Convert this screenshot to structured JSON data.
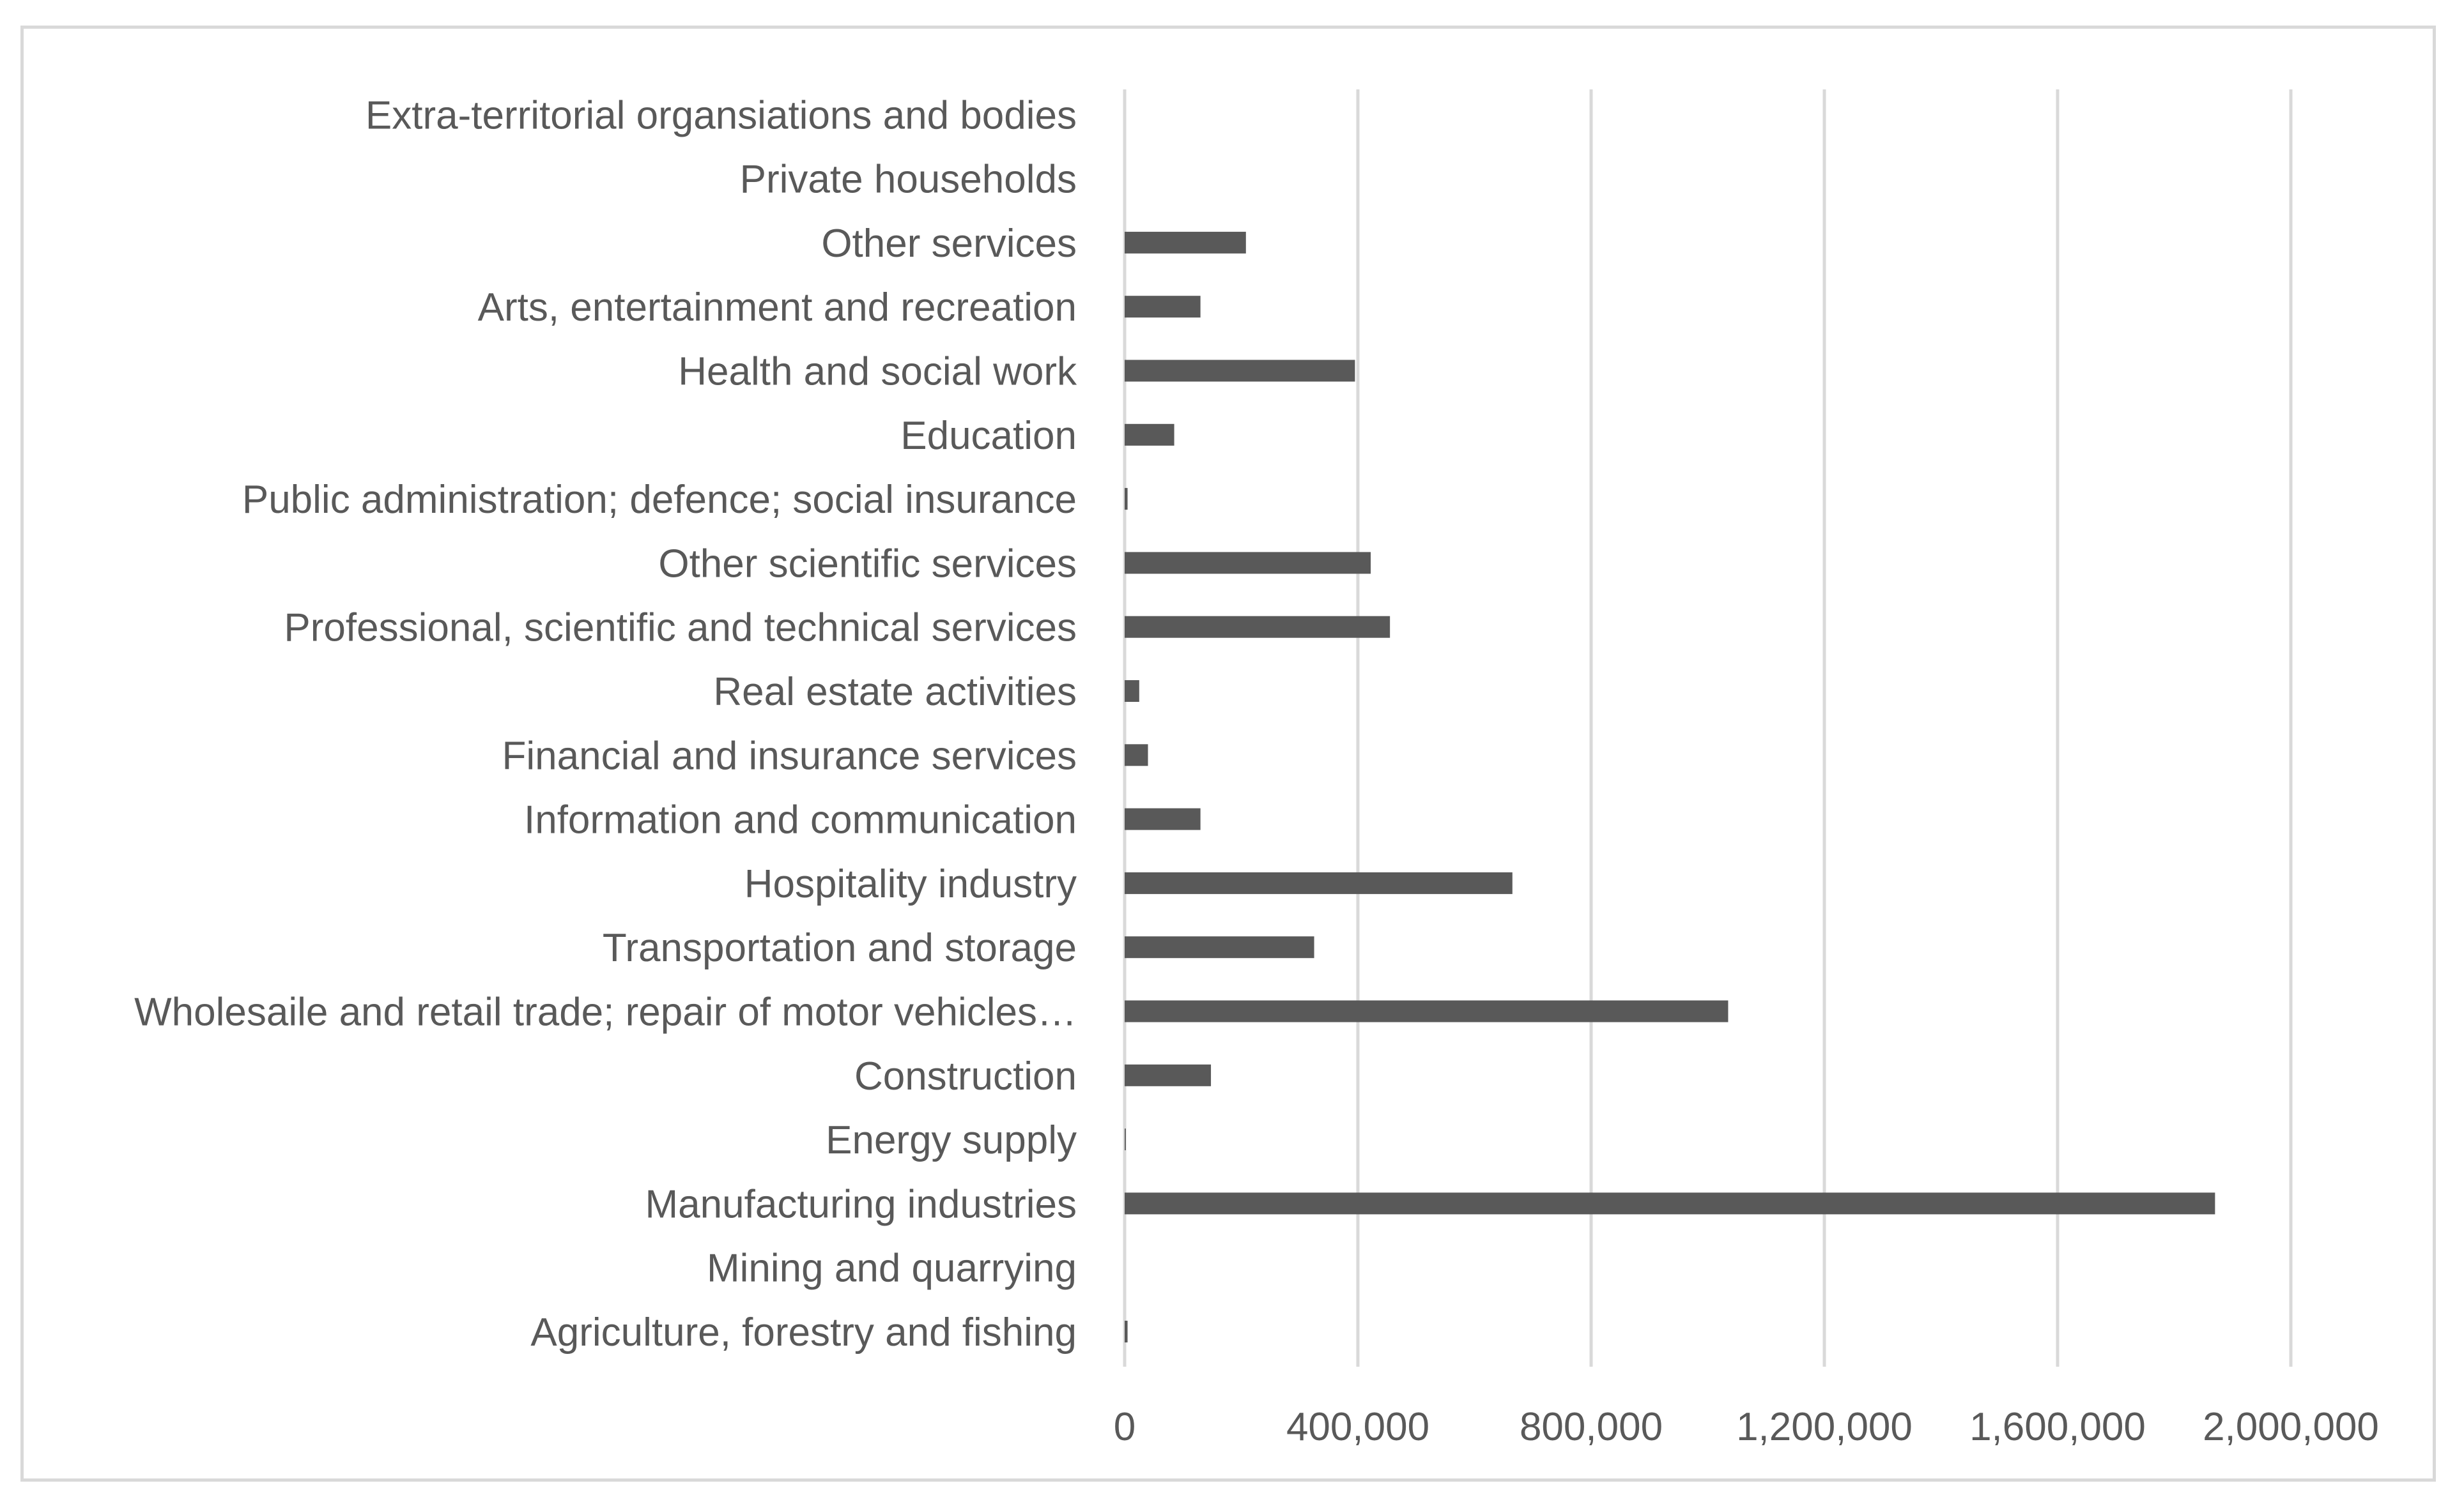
{
  "chart_data": {
    "type": "bar",
    "orientation": "horizontal",
    "title": "",
    "xlabel": "",
    "ylabel": "",
    "xlim": [
      0,
      2000000
    ],
    "grid": true,
    "legend": "none",
    "bar_color": "#595959",
    "gridline_color": "#d9d9d9",
    "text_color": "#595959",
    "x_ticks": [
      {
        "value": 0,
        "label": "0"
      },
      {
        "value": 400000,
        "label": "400,000"
      },
      {
        "value": 800000,
        "label": "800,000"
      },
      {
        "value": 1200000,
        "label": "1,200,000"
      },
      {
        "value": 1600000,
        "label": "1,600,000"
      },
      {
        "value": 2000000,
        "label": "2,000,000"
      }
    ],
    "categories": [
      "Agriculture, forestry and fishing",
      "Mining and quarrying",
      "Manufacturing industries",
      "Energy supply",
      "Construction",
      "Wholesaile and retail trade; repair of motor vehicles…",
      "Transportation and storage",
      "Hospitality industry",
      "Information and communication",
      "Financial and insurance services",
      "Real estate activities",
      "Professional, scientific and technical services",
      "Other scientific services",
      "Public administration; defence; social insurance",
      "Education",
      "Health and social work",
      "Arts, entertainment and recreation",
      "Other services",
      "Private households",
      "Extra-territorial organsiations and bodies"
    ],
    "values": [
      5000,
      0,
      1870000,
      2000,
      148000,
      1035000,
      325000,
      665000,
      130000,
      40000,
      25000,
      455000,
      422000,
      5000,
      85000,
      395000,
      130000,
      208000,
      0,
      0
    ]
  }
}
